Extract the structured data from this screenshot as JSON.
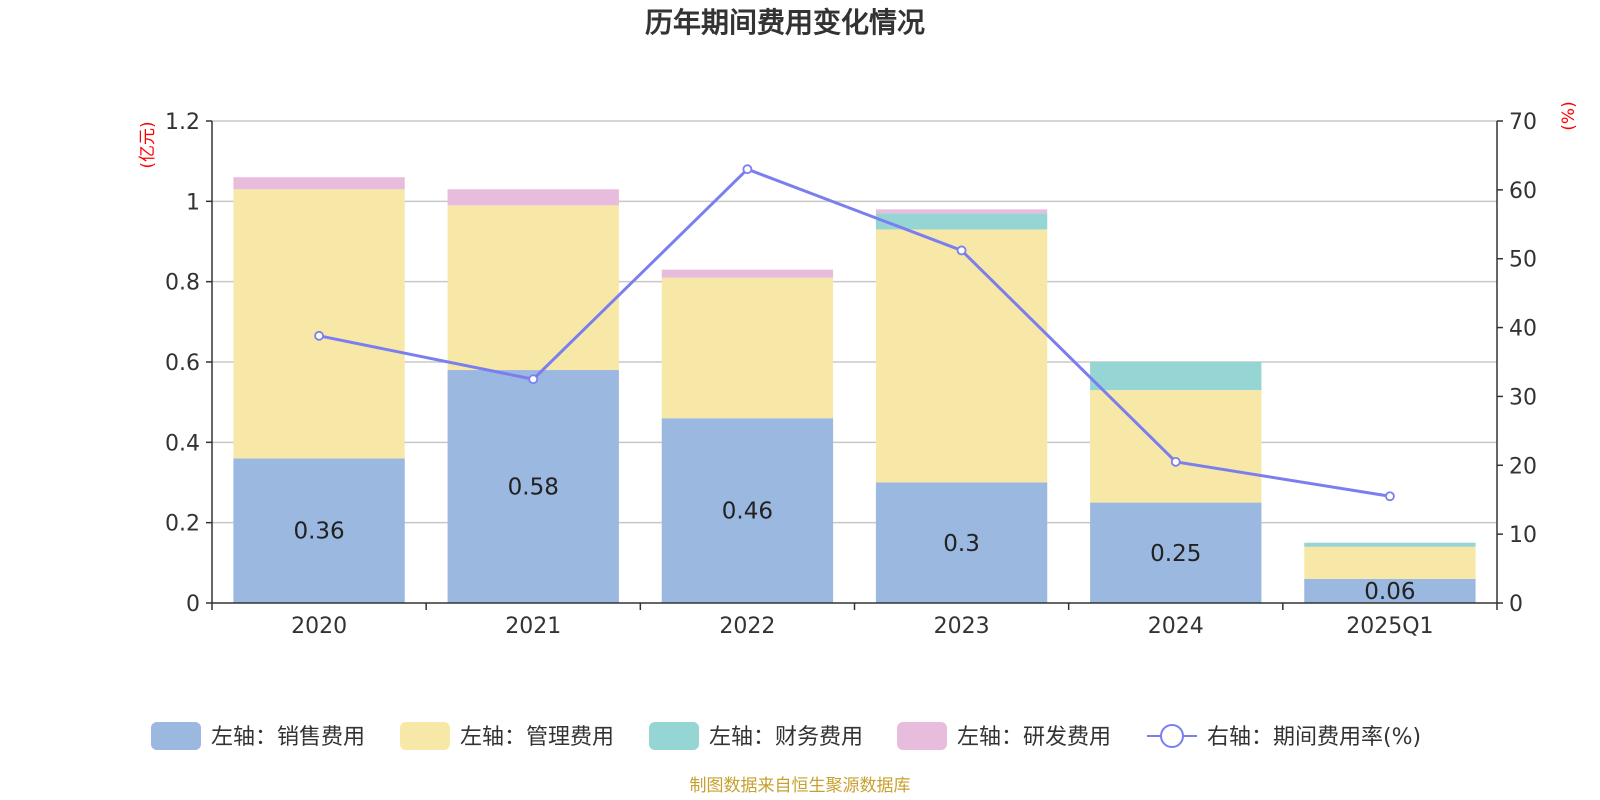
{
  "chart_data": {
    "type": "bar",
    "title": "历年期间费用变化情况",
    "categories": [
      "2020",
      "2021",
      "2022",
      "2023",
      "2024",
      "2025Q1"
    ],
    "left_axis": {
      "unit": "(亿元)",
      "ylim": [
        0,
        1.2
      ],
      "ticks": [
        "0",
        "0.2",
        "0.4",
        "0.6",
        "0.8",
        "1",
        "1.2"
      ]
    },
    "right_axis": {
      "unit": "(%)",
      "ylim": [
        0,
        70
      ],
      "ticks": [
        "0",
        "10",
        "20",
        "30",
        "40",
        "50",
        "60",
        "70"
      ]
    },
    "series": [
      {
        "name": "左轴：销售费用",
        "type": "bar",
        "stack": "cost",
        "color": "#9bb8e0",
        "values": [
          0.36,
          0.58,
          0.46,
          0.3,
          0.25,
          0.06
        ],
        "labels": [
          "0.36",
          "0.58",
          "0.46",
          "0.3",
          "0.25",
          "0.06"
        ]
      },
      {
        "name": "左轴：管理费用",
        "type": "bar",
        "stack": "cost",
        "color": "#f8e8a8",
        "values": [
          0.67,
          0.41,
          0.35,
          0.63,
          0.28,
          0.08
        ]
      },
      {
        "name": "左轴：财务费用",
        "type": "bar",
        "stack": "cost",
        "color": "#95d5d4",
        "values": [
          0.0,
          0.0,
          0.0,
          0.04,
          0.07,
          0.01
        ]
      },
      {
        "name": "左轴：研发费用",
        "type": "bar",
        "stack": "cost",
        "color": "#e8bcdc",
        "values": [
          0.03,
          0.04,
          0.02,
          0.01,
          0.0,
          0.0
        ]
      },
      {
        "name": "右轴：期间费用率(%)",
        "type": "line",
        "axis": "right",
        "color": "#7b7fee",
        "values": [
          38.8,
          32.5,
          63.0,
          51.2,
          20.5,
          15.5
        ]
      }
    ],
    "grid": true,
    "legend_position": "bottom"
  },
  "source": "制图数据来自恒生聚源数据库"
}
